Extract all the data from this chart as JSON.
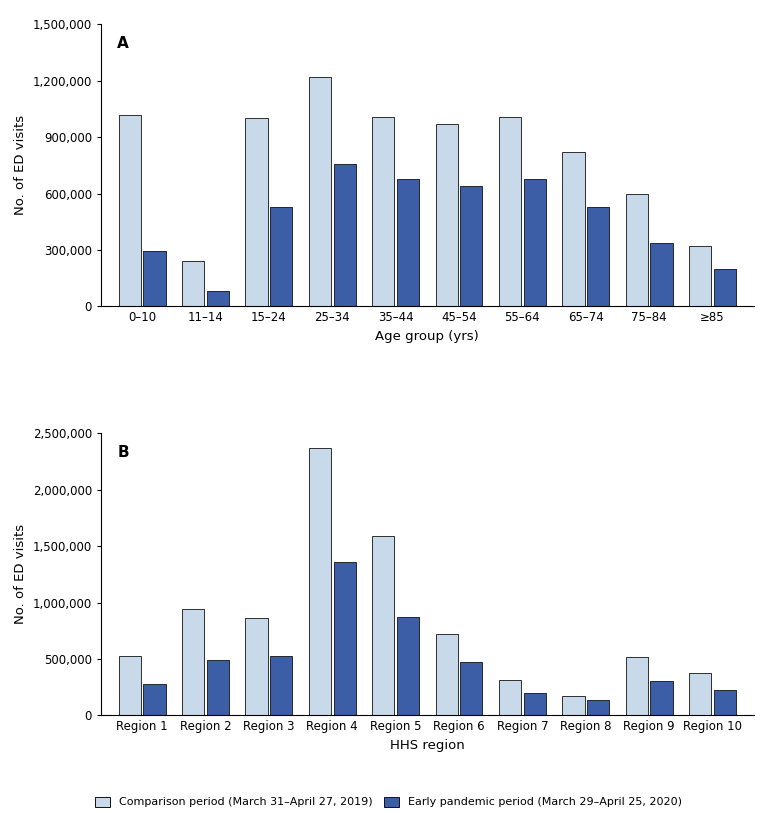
{
  "panel_A": {
    "title": "A",
    "xlabel": "Age group (yrs)",
    "ylabel": "No. of ED visits",
    "categories": [
      "0–10",
      "11–14",
      "15–24",
      "25–34",
      "35–44",
      "45–54",
      "55–64",
      "65–74",
      "75–84",
      "≥85"
    ],
    "comparison": [
      1020000,
      240000,
      1000000,
      1220000,
      1010000,
      970000,
      1010000,
      820000,
      600000,
      320000
    ],
    "pandemic": [
      295000,
      80000,
      530000,
      760000,
      680000,
      640000,
      680000,
      530000,
      340000,
      200000
    ],
    "ylim": [
      0,
      1500000
    ],
    "yticks": [
      0,
      300000,
      600000,
      900000,
      1200000,
      1500000
    ]
  },
  "panel_B": {
    "title": "B",
    "xlabel": "HHS region",
    "ylabel": "No. of ED visits",
    "categories": [
      "Region 1",
      "Region 2",
      "Region 3",
      "Region 4",
      "Region 5",
      "Region 6",
      "Region 7",
      "Region 8",
      "Region 9",
      "Region 10"
    ],
    "comparison": [
      530000,
      940000,
      860000,
      2370000,
      1590000,
      720000,
      310000,
      175000,
      520000,
      375000
    ],
    "pandemic": [
      280000,
      495000,
      530000,
      1360000,
      870000,
      470000,
      195000,
      140000,
      305000,
      225000
    ],
    "ylim": [
      0,
      2500000
    ],
    "yticks": [
      0,
      500000,
      1000000,
      1500000,
      2000000,
      2500000
    ]
  },
  "color_comparison": "#c8d9ea",
  "color_pandemic": "#3b5ea6",
  "color_edge": "#111111",
  "legend_comparison": "Comparison period (March 31–April 27, 2019)",
  "legend_pandemic": "Early pandemic period (March 29–April 25, 2020)",
  "fig_width": 7.77,
  "fig_height": 8.13,
  "dpi": 100
}
